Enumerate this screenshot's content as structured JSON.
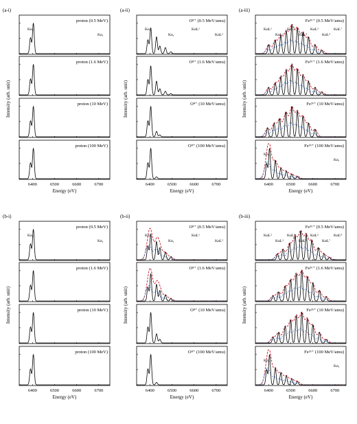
{
  "chart_data": {
    "type": "line",
    "xlabel": "Energy (eV)",
    "ylabel": "Intensity (arb. unit)",
    "xticks": [
      6400,
      6500,
      6600,
      6700
    ],
    "xlim": [
      6340,
      6750
    ],
    "ylim": [
      0,
      1.2
    ],
    "colors": {
      "total": "#000000",
      "fit_red": "#c0192b",
      "fit_blue": "#4a7fd4"
    },
    "groups": [
      {
        "column_labels": [
          "(a-i)",
          "(a-ii)",
          "(a-iii)"
        ],
        "columns": [
          {
            "panels": [
              {
                "label": "proton (0.5 MeV)",
                "peaks": [
                  [
                    6391,
                    0.52
                  ],
                  [
                    6404,
                    1.0
                  ]
                ],
                "fits": false,
                "annotations": [
                  "Kα₂",
                  "Kα₁"
                ]
              },
              {
                "label": "proton (1.6 MeV)",
                "peaks": [
                  [
                    6391,
                    0.52
                  ],
                  [
                    6404,
                    1.0
                  ]
                ],
                "fits": false,
                "annotations": []
              },
              {
                "label": "proton (10 MeV)",
                "peaks": [
                  [
                    6391,
                    0.52
                  ],
                  [
                    6404,
                    1.0
                  ]
                ],
                "fits": false,
                "annotations": []
              },
              {
                "label": "proton (100 MeV)",
                "peaks": [
                  [
                    6391,
                    0.52
                  ],
                  [
                    6404,
                    1.0
                  ]
                ],
                "fits": false,
                "annotations": []
              }
            ]
          },
          {
            "panels": [
              {
                "label": "O⁸⁺ (0.5 MeV/amu)",
                "peaks": [
                  [
                    6391,
                    0.45
                  ],
                  [
                    6404,
                    0.85
                  ],
                  [
                    6430,
                    0.55
                  ],
                  [
                    6445,
                    0.25
                  ],
                  [
                    6470,
                    0.2
                  ],
                  [
                    6495,
                    0.06
                  ]
                ],
                "fits": false,
                "annotations": [
                  "Kα₂",
                  "Kα₁",
                  "KαL¹",
                  "KαL²"
                ]
              },
              {
                "label": "O⁸⁺ (1.6 MeV/amu)",
                "peaks": [
                  [
                    6391,
                    0.5
                  ],
                  [
                    6404,
                    0.95
                  ],
                  [
                    6430,
                    0.45
                  ],
                  [
                    6445,
                    0.2
                  ],
                  [
                    6470,
                    0.12
                  ],
                  [
                    6495,
                    0.04
                  ]
                ],
                "fits": false,
                "annotations": []
              },
              {
                "label": "O⁸⁺ (10 MeV/amu)",
                "peaks": [
                  [
                    6391,
                    0.52
                  ],
                  [
                    6404,
                    1.0
                  ],
                  [
                    6430,
                    0.18
                  ],
                  [
                    6445,
                    0.06
                  ]
                ],
                "fits": false,
                "annotations": []
              },
              {
                "label": "O⁸⁺ (100 MeV/amu)",
                "peaks": [
                  [
                    6391,
                    0.52
                  ],
                  [
                    6404,
                    1.0
                  ],
                  [
                    6430,
                    0.06
                  ]
                ],
                "fits": false,
                "annotations": []
              }
            ]
          },
          {
            "panels": [
              {
                "label": "Fe²⁶⁺ (0.5 MeV/amu)",
                "peaks": [
                  [
                    6400,
                    0.3
                  ],
                  [
                    6430,
                    0.45
                  ],
                  [
                    6455,
                    0.6
                  ],
                  [
                    6480,
                    0.75
                  ],
                  [
                    6505,
                    0.95
                  ],
                  [
                    6530,
                    0.85
                  ],
                  [
                    6555,
                    0.7
                  ],
                  [
                    6580,
                    0.55
                  ],
                  [
                    6610,
                    0.3
                  ],
                  [
                    6640,
                    0.12
                  ]
                ],
                "fits": true,
                "annotations": [
                  "KαL¹",
                  "KαL²",
                  "KαL³",
                  "KαL⁴",
                  "KαL⁵",
                  "KαL⁶",
                  "KαL⁷"
                ]
              },
              {
                "label": "Fe²⁶⁺ (1.6 MeV/amu)",
                "peaks": [
                  [
                    6400,
                    0.25
                  ],
                  [
                    6430,
                    0.4
                  ],
                  [
                    6455,
                    0.6
                  ],
                  [
                    6480,
                    0.82
                  ],
                  [
                    6505,
                    1.0
                  ],
                  [
                    6530,
                    0.85
                  ],
                  [
                    6555,
                    0.65
                  ],
                  [
                    6580,
                    0.45
                  ],
                  [
                    6610,
                    0.25
                  ],
                  [
                    6640,
                    0.1
                  ]
                ],
                "fits": true,
                "annotations": []
              },
              {
                "label": "Fe²⁶⁺ (10 MeV/amu)",
                "peaks": [
                  [
                    6395,
                    0.3
                  ],
                  [
                    6425,
                    0.45
                  ],
                  [
                    6450,
                    0.6
                  ],
                  [
                    6478,
                    0.82
                  ],
                  [
                    6505,
                    1.0
                  ],
                  [
                    6530,
                    0.85
                  ],
                  [
                    6555,
                    0.68
                  ],
                  [
                    6580,
                    0.45
                  ],
                  [
                    6610,
                    0.25
                  ]
                ],
                "fits": true,
                "annotations": []
              },
              {
                "label": "Fe²⁶⁺ (100 MeV/amu)",
                "peaks": [
                  [
                    6391,
                    0.5
                  ],
                  [
                    6404,
                    1.0
                  ],
                  [
                    6430,
                    0.6
                  ],
                  [
                    6455,
                    0.35
                  ],
                  [
                    6480,
                    0.25
                  ],
                  [
                    6505,
                    0.15
                  ],
                  [
                    6530,
                    0.08
                  ]
                ],
                "fits": true,
                "annotations": [
                  "Kα₂",
                  "Kα₁"
                ]
              }
            ]
          }
        ]
      },
      {
        "column_labels": [
          "(b-i)",
          "(b-ii)",
          "(b-iii)"
        ],
        "columns": [
          {
            "panels": [
              {
                "label": "proton (0.5 MeV)",
                "peaks": [
                  [
                    6391,
                    0.52
                  ],
                  [
                    6404,
                    1.0
                  ]
                ],
                "fits": false,
                "annotations": [
                  "Kα₂",
                  "Kα₁"
                ]
              },
              {
                "label": "proton (1.6 MeV)",
                "peaks": [
                  [
                    6391,
                    0.52
                  ],
                  [
                    6404,
                    1.0
                  ]
                ],
                "fits": false,
                "annotations": []
              },
              {
                "label": "proton (10 MeV)",
                "peaks": [
                  [
                    6391,
                    0.52
                  ],
                  [
                    6404,
                    1.0
                  ]
                ],
                "fits": false,
                "annotations": []
              },
              {
                "label": "proton (100 MeV)",
                "peaks": [
                  [
                    6391,
                    0.52
                  ],
                  [
                    6404,
                    1.0
                  ]
                ],
                "fits": false,
                "annotations": []
              }
            ]
          },
          {
            "panels": [
              {
                "label": "O⁸⁺ (0.5 MeV/amu)",
                "peaks": [
                  [
                    6391,
                    0.45
                  ],
                  [
                    6404,
                    0.85
                  ],
                  [
                    6430,
                    0.6
                  ],
                  [
                    6445,
                    0.4
                  ],
                  [
                    6470,
                    0.25
                  ],
                  [
                    6495,
                    0.1
                  ]
                ],
                "fits": true,
                "annotations": [
                  "Kα₂",
                  "Kα₁",
                  "KαL¹",
                  "KαL²"
                ]
              },
              {
                "label": "O⁸⁺ (1.6 MeV/amu)",
                "peaks": [
                  [
                    6391,
                    0.45
                  ],
                  [
                    6404,
                    0.9
                  ],
                  [
                    6430,
                    0.55
                  ],
                  [
                    6445,
                    0.35
                  ],
                  [
                    6470,
                    0.2
                  ],
                  [
                    6495,
                    0.08
                  ]
                ],
                "fits": true,
                "annotations": []
              },
              {
                "label": "O⁸⁺ (10 MeV/amu)",
                "peaks": [
                  [
                    6391,
                    0.52
                  ],
                  [
                    6404,
                    1.0
                  ],
                  [
                    6430,
                    0.3
                  ],
                  [
                    6445,
                    0.12
                  ]
                ],
                "fits": false,
                "annotations": []
              },
              {
                "label": "O⁸⁺ (100 MeV/amu)",
                "peaks": [
                  [
                    6391,
                    0.52
                  ],
                  [
                    6404,
                    1.0
                  ],
                  [
                    6430,
                    0.08
                  ]
                ],
                "fits": false,
                "annotations": []
              }
            ]
          },
          {
            "panels": [
              {
                "label": "Fe²⁶⁺ (0.5 MeV/amu)",
                "peaks": [
                  [
                    6440,
                    0.2
                  ],
                  [
                    6465,
                    0.35
                  ],
                  [
                    6495,
                    0.55
                  ],
                  [
                    6520,
                    0.8
                  ],
                  [
                    6545,
                    0.95
                  ],
                  [
                    6570,
                    0.85
                  ],
                  [
                    6595,
                    0.65
                  ],
                  [
                    6625,
                    0.4
                  ],
                  [
                    6650,
                    0.2
                  ],
                  [
                    6675,
                    0.08
                  ]
                ],
                "fits": true,
                "annotations": [
                  "KαL²",
                  "KαL³",
                  "KαL⁴",
                  "KαL⁵",
                  "KαL⁶",
                  "KαL⁷",
                  "KαL⁸"
                ]
              },
              {
                "label": "Fe²⁶⁺ (1.6 MeV/amu)",
                "peaks": [
                  [
                    6420,
                    0.18
                  ],
                  [
                    6445,
                    0.3
                  ],
                  [
                    6475,
                    0.5
                  ],
                  [
                    6500,
                    0.7
                  ],
                  [
                    6525,
                    0.9
                  ],
                  [
                    6550,
                    1.0
                  ],
                  [
                    6575,
                    0.8
                  ],
                  [
                    6600,
                    0.6
                  ],
                  [
                    6630,
                    0.35
                  ],
                  [
                    6660,
                    0.15
                  ]
                ],
                "fits": true,
                "annotations": []
              },
              {
                "label": "Fe²⁶⁺ (10 MeV/amu)",
                "peaks": [
                  [
                    6420,
                    0.2
                  ],
                  [
                    6445,
                    0.35
                  ],
                  [
                    6475,
                    0.55
                  ],
                  [
                    6500,
                    0.75
                  ],
                  [
                    6525,
                    0.9
                  ],
                  [
                    6550,
                    1.0
                  ],
                  [
                    6575,
                    0.8
                  ],
                  [
                    6600,
                    0.6
                  ],
                  [
                    6630,
                    0.35
                  ],
                  [
                    6660,
                    0.12
                  ]
                ],
                "fits": true,
                "annotations": []
              },
              {
                "label": "Fe²⁶⁺ (100 MeV/amu)",
                "peaks": [
                  [
                    6391,
                    0.5
                  ],
                  [
                    6404,
                    1.0
                  ],
                  [
                    6430,
                    0.55
                  ],
                  [
                    6455,
                    0.4
                  ],
                  [
                    6480,
                    0.3
                  ],
                  [
                    6505,
                    0.2
                  ],
                  [
                    6530,
                    0.12
                  ]
                ],
                "fits": true,
                "annotations": [
                  "Kα₂",
                  "Kα₁"
                ]
              }
            ]
          }
        ]
      }
    ]
  }
}
